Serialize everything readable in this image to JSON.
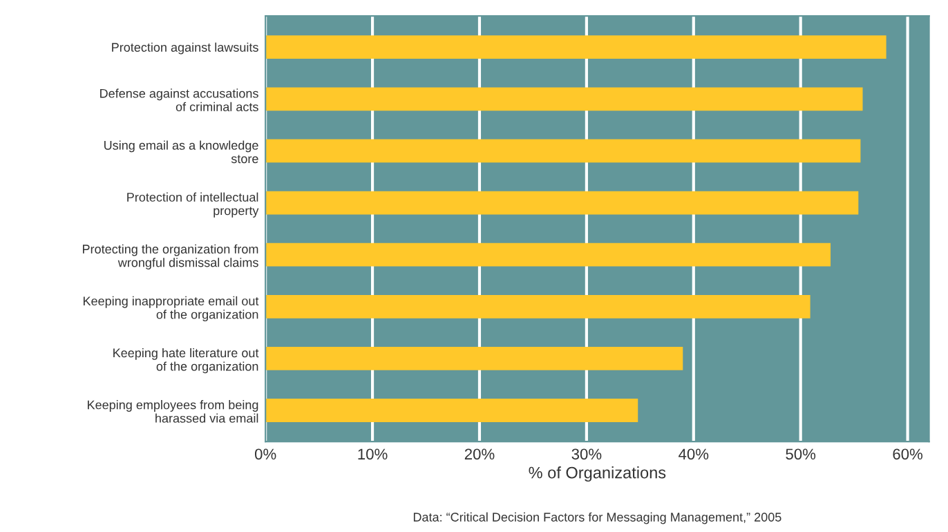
{
  "chart_data": {
    "type": "bar",
    "orientation": "horizontal",
    "categories": [
      "Protection against lawsuits",
      "Defense against accusations\nof criminal acts",
      "Using email as a knowledge\nstore",
      "Protection of intellectual\nproperty",
      "Protecting the organization from\nwrongful dismissal claims",
      "Keeping inappropriate email out\nof the organization",
      "Keeping hate literature out\nof the organization",
      "Keeping employees from being\nharassed via email"
    ],
    "values": [
      58,
      55.8,
      55.6,
      55.4,
      52.8,
      50.9,
      39,
      34.8
    ],
    "color": "#ffc82a",
    "xlabel": "% of Organizations",
    "xlim": [
      0,
      62
    ],
    "xticks": [
      {
        "value": 0,
        "label": "0%"
      },
      {
        "value": 10,
        "label": "10%"
      },
      {
        "value": 20,
        "label": "20%"
      },
      {
        "value": 30,
        "label": "30%"
      },
      {
        "value": 40,
        "label": "40%"
      },
      {
        "value": 50,
        "label": "50%"
      },
      {
        "value": 60,
        "label": "60%"
      }
    ],
    "grid": "x",
    "annotations": [
      "Data: “Critical Decision Factors for Messaging Management,” 2005"
    ]
  }
}
